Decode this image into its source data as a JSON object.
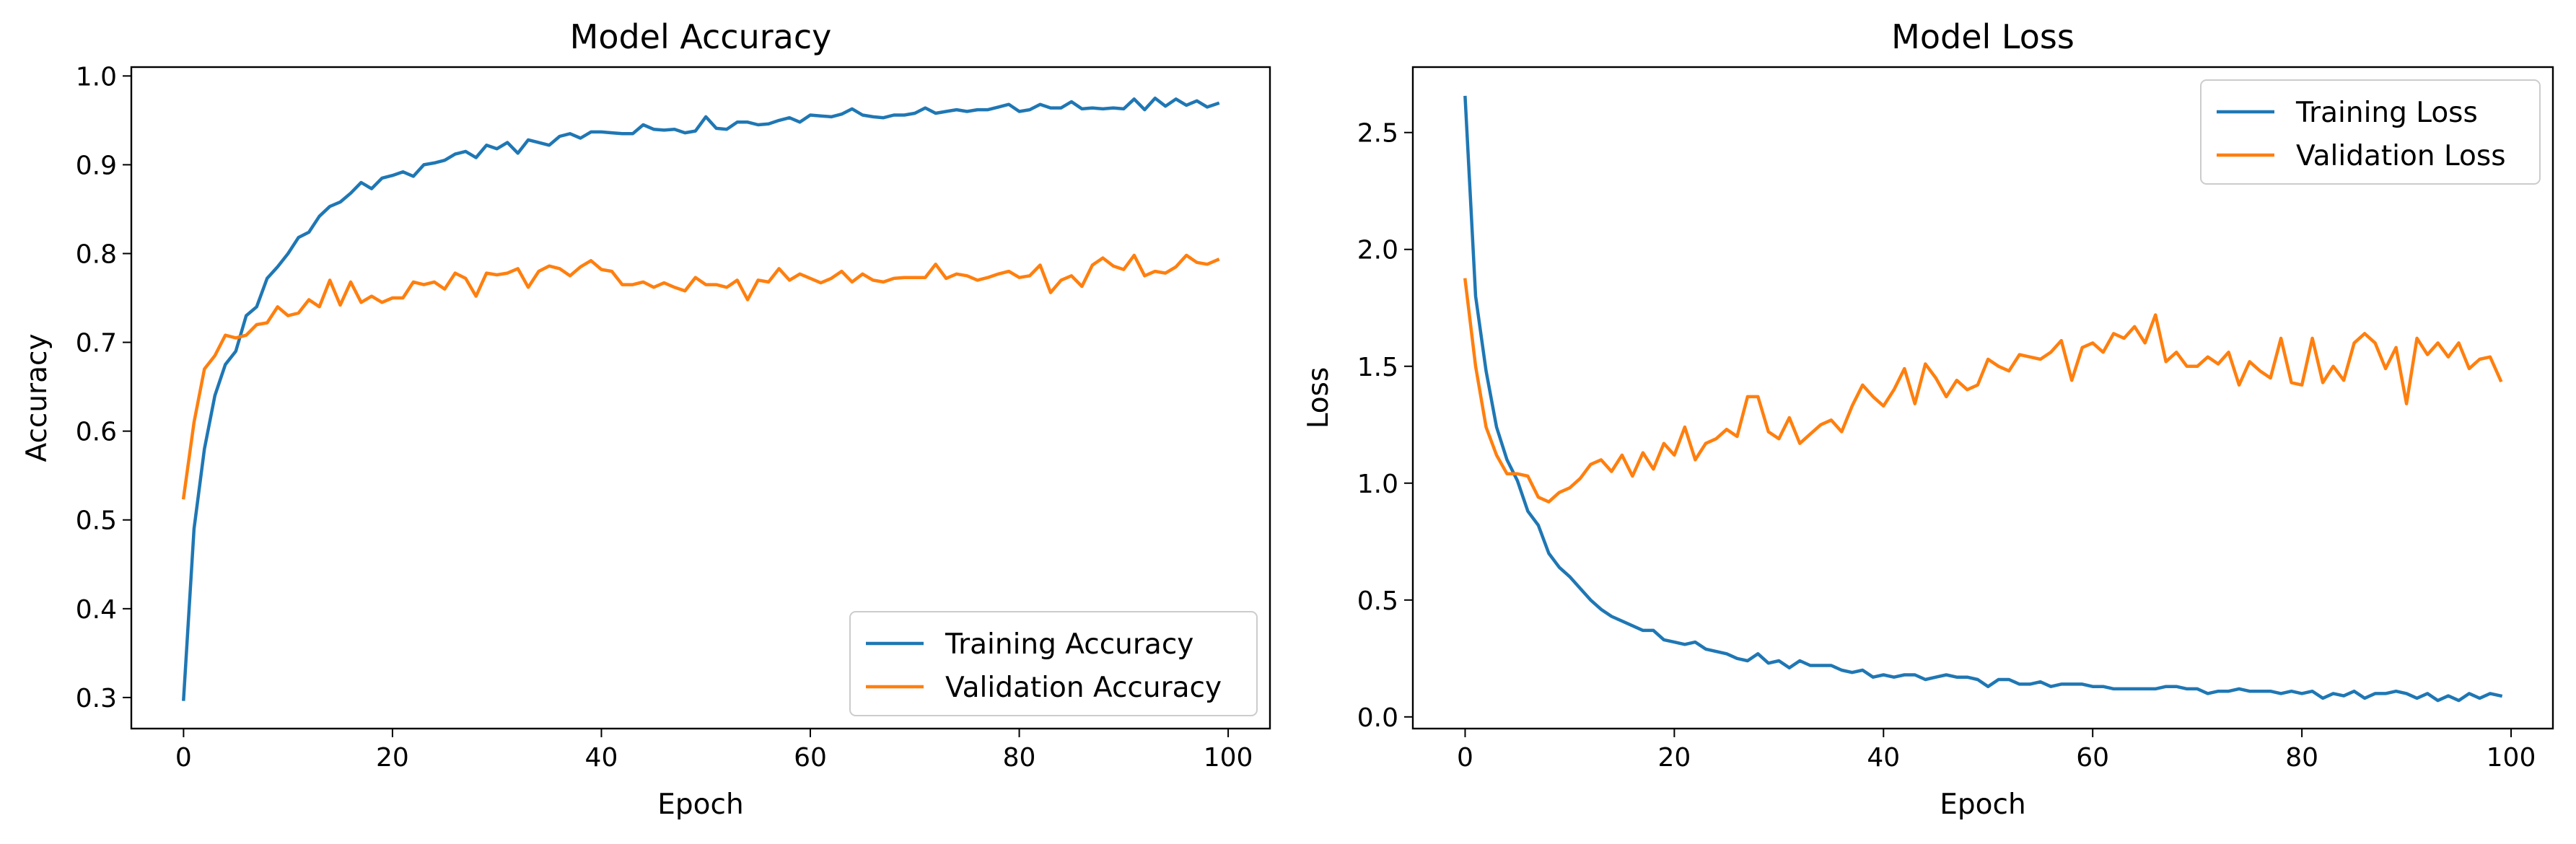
{
  "chart_data": [
    {
      "type": "line",
      "title": "Model Accuracy",
      "xlabel": "Epoch",
      "ylabel": "Accuracy",
      "xlim": [
        -5,
        104
      ],
      "ylim": [
        0.265,
        1.01
      ],
      "xticks": [
        0,
        20,
        40,
        60,
        80,
        100
      ],
      "yticks": [
        0.3,
        0.4,
        0.5,
        0.6,
        0.7,
        0.8,
        0.9,
        1.0
      ],
      "ytick_labels": [
        "0.3",
        "0.4",
        "0.5",
        "0.6",
        "0.7",
        "0.8",
        "0.9",
        "1.0"
      ],
      "legend_position": "lower-right",
      "grid": false,
      "x": [
        0,
        1,
        2,
        3,
        4,
        5,
        6,
        7,
        8,
        9,
        10,
        11,
        12,
        13,
        14,
        15,
        16,
        17,
        18,
        19,
        20,
        21,
        22,
        23,
        24,
        25,
        26,
        27,
        28,
        29,
        30,
        31,
        32,
        33,
        34,
        35,
        36,
        37,
        38,
        39,
        40,
        41,
        42,
        43,
        44,
        45,
        46,
        47,
        48,
        49,
        50,
        51,
        52,
        53,
        54,
        55,
        56,
        57,
        58,
        59,
        60,
        61,
        62,
        63,
        64,
        65,
        66,
        67,
        68,
        69,
        70,
        71,
        72,
        73,
        74,
        75,
        76,
        77,
        78,
        79,
        80,
        81,
        82,
        83,
        84,
        85,
        86,
        87,
        88,
        89,
        90,
        91,
        92,
        93,
        94,
        95,
        96,
        97,
        98,
        99
      ],
      "series": [
        {
          "name": "Training Accuracy",
          "color": "#1f77b4",
          "values": [
            0.298,
            0.49,
            0.58,
            0.64,
            0.675,
            0.69,
            0.73,
            0.74,
            0.772,
            0.785,
            0.8,
            0.818,
            0.824,
            0.842,
            0.853,
            0.858,
            0.868,
            0.88,
            0.873,
            0.885,
            0.888,
            0.892,
            0.887,
            0.9,
            0.902,
            0.905,
            0.912,
            0.915,
            0.908,
            0.922,
            0.918,
            0.925,
            0.913,
            0.928,
            0.925,
            0.922,
            0.932,
            0.935,
            0.93,
            0.937,
            0.937,
            0.936,
            0.935,
            0.935,
            0.945,
            0.94,
            0.939,
            0.94,
            0.936,
            0.938,
            0.954,
            0.941,
            0.94,
            0.948,
            0.948,
            0.945,
            0.946,
            0.95,
            0.953,
            0.948,
            0.956,
            0.955,
            0.954,
            0.957,
            0.963,
            0.956,
            0.954,
            0.953,
            0.956,
            0.956,
            0.958,
            0.964,
            0.958,
            0.96,
            0.962,
            0.96,
            0.962,
            0.962,
            0.965,
            0.968,
            0.96,
            0.962,
            0.968,
            0.964,
            0.964,
            0.971,
            0.963,
            0.964,
            0.963,
            0.964,
            0.963,
            0.974,
            0.962,
            0.975,
            0.966,
            0.974,
            0.967,
            0.972,
            0.965,
            0.969
          ]
        },
        {
          "name": "Validation Accuracy",
          "color": "#ff7f0e",
          "values": [
            0.525,
            0.61,
            0.67,
            0.685,
            0.708,
            0.705,
            0.708,
            0.72,
            0.722,
            0.74,
            0.73,
            0.733,
            0.748,
            0.74,
            0.77,
            0.742,
            0.768,
            0.745,
            0.752,
            0.745,
            0.75,
            0.75,
            0.768,
            0.765,
            0.768,
            0.76,
            0.778,
            0.772,
            0.752,
            0.778,
            0.776,
            0.778,
            0.783,
            0.762,
            0.78,
            0.786,
            0.783,
            0.775,
            0.785,
            0.792,
            0.782,
            0.78,
            0.765,
            0.765,
            0.768,
            0.762,
            0.767,
            0.762,
            0.758,
            0.773,
            0.765,
            0.765,
            0.762,
            0.77,
            0.748,
            0.77,
            0.768,
            0.783,
            0.77,
            0.777,
            0.772,
            0.767,
            0.772,
            0.78,
            0.768,
            0.777,
            0.77,
            0.768,
            0.772,
            0.773,
            0.773,
            0.773,
            0.788,
            0.772,
            0.777,
            0.775,
            0.77,
            0.773,
            0.777,
            0.78,
            0.773,
            0.775,
            0.787,
            0.756,
            0.77,
            0.775,
            0.763,
            0.787,
            0.795,
            0.786,
            0.782,
            0.798,
            0.775,
            0.78,
            0.778,
            0.785,
            0.798,
            0.79,
            0.788,
            0.793
          ]
        }
      ]
    },
    {
      "type": "line",
      "title": "Model Loss",
      "xlabel": "Epoch",
      "ylabel": "Loss",
      "xlim": [
        -5,
        104
      ],
      "ylim": [
        -0.05,
        2.78
      ],
      "xticks": [
        0,
        20,
        40,
        60,
        80,
        100
      ],
      "yticks": [
        0.0,
        0.5,
        1.0,
        1.5,
        2.0,
        2.5
      ],
      "ytick_labels": [
        "0.0",
        "0.5",
        "1.0",
        "1.5",
        "2.0",
        "2.5"
      ],
      "legend_position": "upper-right",
      "grid": false,
      "x": [
        0,
        1,
        2,
        3,
        4,
        5,
        6,
        7,
        8,
        9,
        10,
        11,
        12,
        13,
        14,
        15,
        16,
        17,
        18,
        19,
        20,
        21,
        22,
        23,
        24,
        25,
        26,
        27,
        28,
        29,
        30,
        31,
        32,
        33,
        34,
        35,
        36,
        37,
        38,
        39,
        40,
        41,
        42,
        43,
        44,
        45,
        46,
        47,
        48,
        49,
        50,
        51,
        52,
        53,
        54,
        55,
        56,
        57,
        58,
        59,
        60,
        61,
        62,
        63,
        64,
        65,
        66,
        67,
        68,
        69,
        70,
        71,
        72,
        73,
        74,
        75,
        76,
        77,
        78,
        79,
        80,
        81,
        82,
        83,
        84,
        85,
        86,
        87,
        88,
        89,
        90,
        91,
        92,
        93,
        94,
        95,
        96,
        97,
        98,
        99
      ],
      "series": [
        {
          "name": "Training Loss",
          "color": "#1f77b4",
          "values": [
            2.65,
            1.8,
            1.48,
            1.24,
            1.1,
            1.01,
            0.88,
            0.82,
            0.7,
            0.64,
            0.6,
            0.55,
            0.5,
            0.46,
            0.43,
            0.41,
            0.39,
            0.37,
            0.37,
            0.33,
            0.32,
            0.31,
            0.32,
            0.29,
            0.28,
            0.27,
            0.25,
            0.24,
            0.27,
            0.23,
            0.24,
            0.21,
            0.24,
            0.22,
            0.22,
            0.22,
            0.2,
            0.19,
            0.2,
            0.17,
            0.18,
            0.17,
            0.18,
            0.18,
            0.16,
            0.17,
            0.18,
            0.17,
            0.17,
            0.16,
            0.13,
            0.16,
            0.16,
            0.14,
            0.14,
            0.15,
            0.13,
            0.14,
            0.14,
            0.14,
            0.13,
            0.13,
            0.12,
            0.12,
            0.12,
            0.12,
            0.12,
            0.13,
            0.13,
            0.12,
            0.12,
            0.1,
            0.11,
            0.11,
            0.12,
            0.11,
            0.11,
            0.11,
            0.1,
            0.11,
            0.1,
            0.11,
            0.08,
            0.1,
            0.09,
            0.11,
            0.08,
            0.1,
            0.1,
            0.11,
            0.1,
            0.08,
            0.1,
            0.07,
            0.09,
            0.07,
            0.1,
            0.08,
            0.1,
            0.09
          ]
        },
        {
          "name": "Validation Loss",
          "color": "#ff7f0e",
          "values": [
            1.87,
            1.5,
            1.24,
            1.12,
            1.04,
            1.04,
            1.03,
            0.94,
            0.92,
            0.96,
            0.98,
            1.02,
            1.08,
            1.1,
            1.05,
            1.12,
            1.03,
            1.13,
            1.06,
            1.17,
            1.12,
            1.24,
            1.1,
            1.17,
            1.19,
            1.23,
            1.2,
            1.37,
            1.37,
            1.22,
            1.19,
            1.28,
            1.17,
            1.21,
            1.25,
            1.27,
            1.22,
            1.33,
            1.42,
            1.37,
            1.33,
            1.4,
            1.49,
            1.34,
            1.51,
            1.45,
            1.37,
            1.44,
            1.4,
            1.42,
            1.53,
            1.5,
            1.48,
            1.55,
            1.54,
            1.53,
            1.56,
            1.61,
            1.44,
            1.58,
            1.6,
            1.56,
            1.64,
            1.62,
            1.67,
            1.6,
            1.72,
            1.52,
            1.56,
            1.5,
            1.5,
            1.54,
            1.51,
            1.56,
            1.42,
            1.52,
            1.48,
            1.45,
            1.62,
            1.43,
            1.42,
            1.62,
            1.43,
            1.5,
            1.44,
            1.6,
            1.64,
            1.6,
            1.49,
            1.58,
            1.34,
            1.62,
            1.55,
            1.6,
            1.54,
            1.6,
            1.49,
            1.53,
            1.54,
            1.44
          ]
        }
      ]
    }
  ]
}
